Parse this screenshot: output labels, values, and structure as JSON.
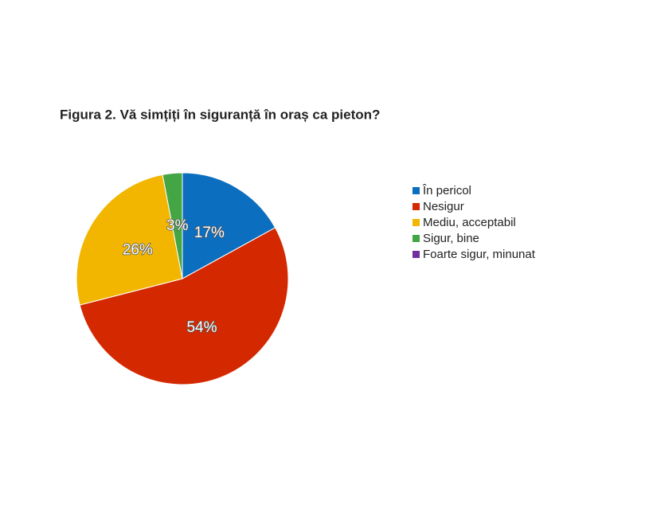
{
  "chart_data": {
    "type": "pie",
    "title": "Figura  2. Vă simțiți  în siguranță  în oraș ca pieton?",
    "categories": [
      "În pericol",
      "Nesigur",
      "Mediu, acceptabil",
      "Sigur, bine",
      "Foarte sigur, minunat"
    ],
    "values": [
      17,
      54,
      26,
      3,
      0
    ],
    "value_labels": [
      "17%",
      "54%",
      "26%",
      "3%",
      null
    ],
    "colors": [
      "#0b6ebf",
      "#d42800",
      "#f2b600",
      "#44a544",
      "#7030a0"
    ],
    "legend": "right"
  }
}
